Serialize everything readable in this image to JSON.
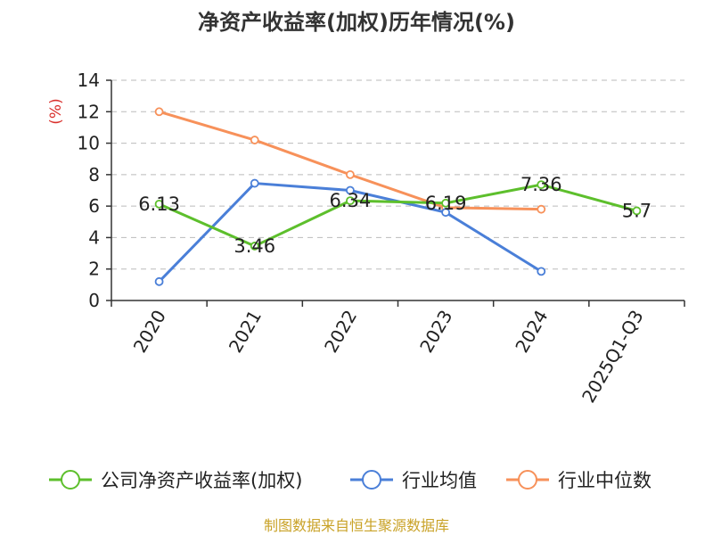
{
  "chart_data": {
    "type": "line",
    "title": "净资产收益率(加权)历年情况(%)",
    "ylabel": "(%)",
    "xlabel": "",
    "ylim": [
      0,
      14
    ],
    "yticks": [
      0,
      2,
      4,
      6,
      8,
      10,
      12,
      14
    ],
    "categories": [
      "2020",
      "2021",
      "2022",
      "2023",
      "2024",
      "2025Q1-Q3"
    ],
    "grid": true,
    "legend_position": "bottom",
    "series": [
      {
        "name": "公司净资产收益率(加权)",
        "color": "#5dbf2c",
        "values": [
          6.13,
          3.46,
          6.34,
          6.19,
          7.36,
          5.7
        ],
        "labels": [
          "6.13",
          "3.46",
          "6.34",
          "6.19",
          "7.36",
          "5.7"
        ]
      },
      {
        "name": "行业均值",
        "color": "#4a7fd8",
        "values": [
          1.2,
          7.45,
          7.0,
          5.6,
          1.85,
          null
        ],
        "labels": []
      },
      {
        "name": "行业中位数",
        "color": "#f7915a",
        "values": [
          12.0,
          10.2,
          8.0,
          5.9,
          5.8,
          null
        ],
        "labels": []
      }
    ],
    "source": "制图数据来自恒生聚源数据库"
  }
}
